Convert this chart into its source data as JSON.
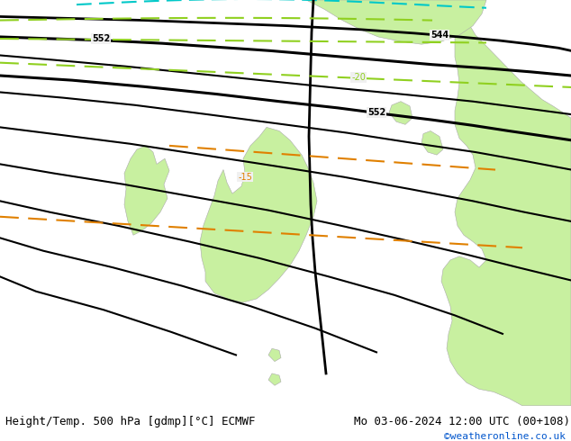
{
  "title_left": "Height/Temp. 500 hPa [gdmp][°C] ECMWF",
  "title_right": "Mo 03-06-2024 12:00 UTC (00+108)",
  "credit": "©weatheronline.co.uk",
  "sea_color": "#f0f0f0",
  "land_color": "#c8f0a0",
  "land_edge_color": "#aaaaaa",
  "contour_color_black": "#000000",
  "contour_color_green": "#90d020",
  "contour_color_cyan": "#00c8c8",
  "contour_color_orange": "#e08000",
  "font_size_title": 9,
  "font_size_credit": 8,
  "fig_width": 6.34,
  "fig_height": 4.9
}
